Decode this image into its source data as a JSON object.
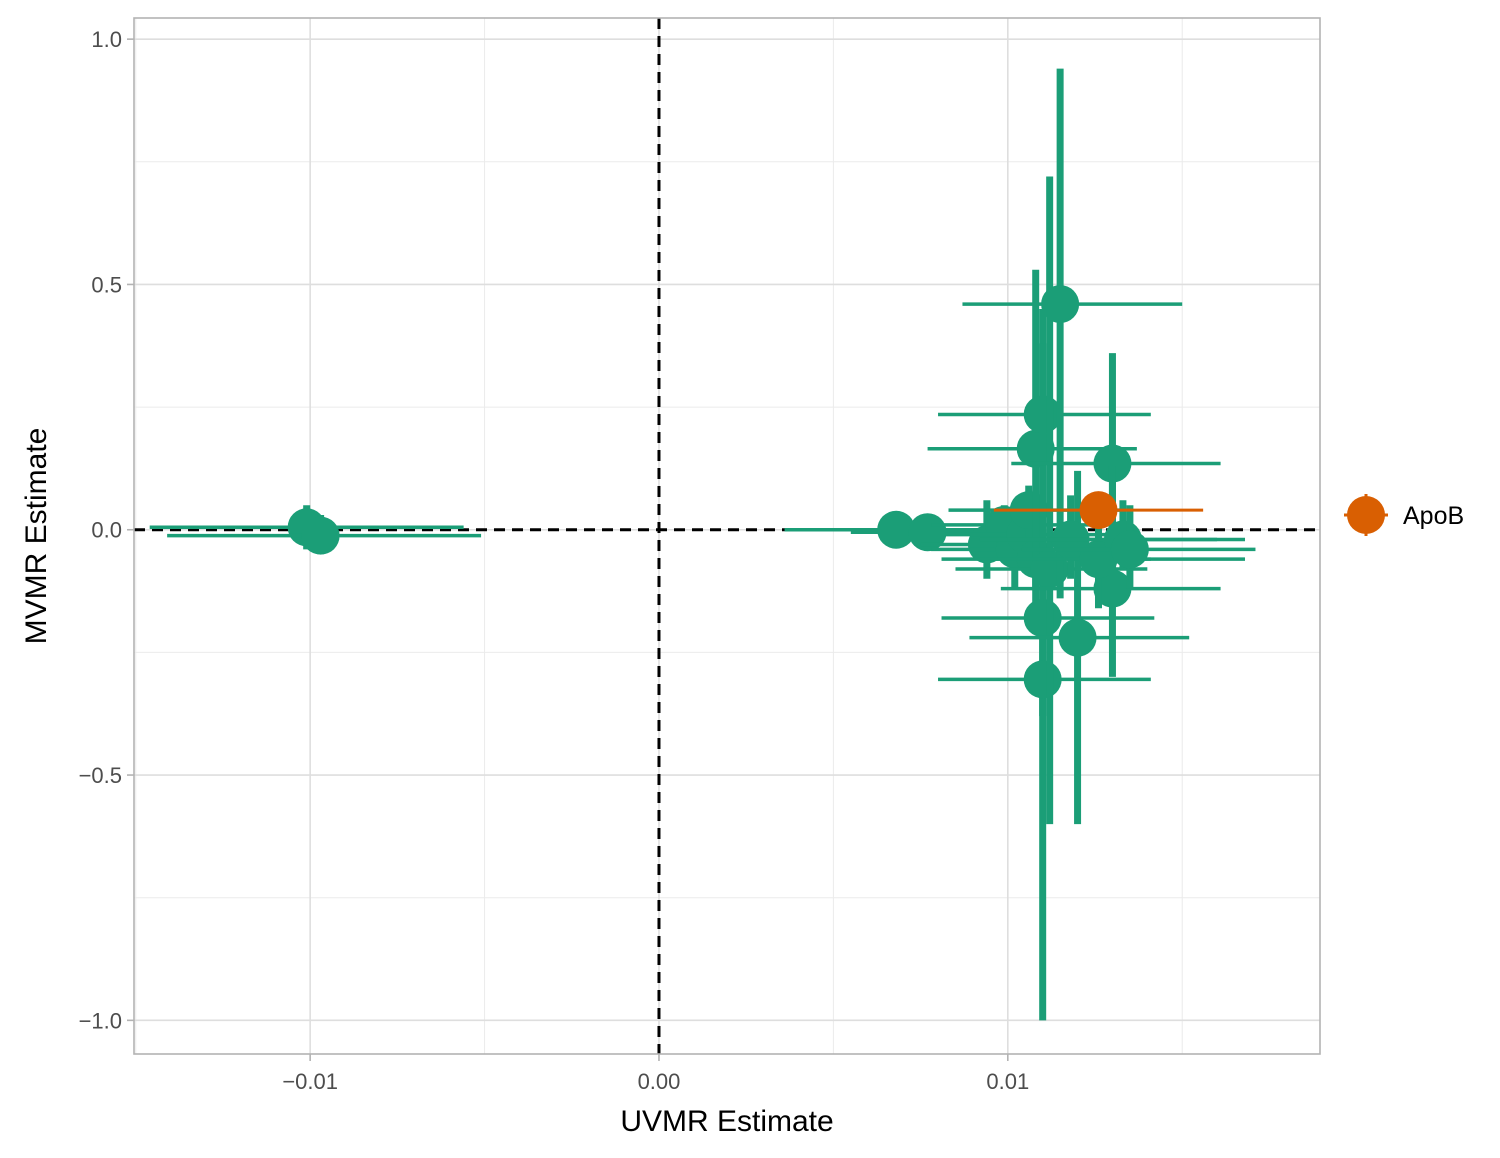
{
  "chart_data": {
    "type": "scatter",
    "xlabel": "UVMR Estimate",
    "ylabel": "MVMR Estimate",
    "xlim": [
      -0.01505,
      0.01895
    ],
    "ylim": [
      -1.0686,
      1.0431
    ],
    "x_ticks": [
      -0.01,
      0.0,
      0.01
    ],
    "x_tick_labels": [
      "−0.01",
      "0.00",
      "0.01"
    ],
    "y_ticks": [
      -1.0,
      -0.5,
      0.0,
      0.5,
      1.0
    ],
    "y_tick_labels": [
      "−1.0",
      "−0.5",
      "0.0",
      "0.5",
      "1.0"
    ],
    "x_minor_ticks": [
      -0.015,
      -0.005,
      0.005,
      0.015
    ],
    "y_minor_ticks": [
      -0.75,
      -0.25,
      0.25,
      0.75
    ],
    "grid": true,
    "reference_lines": {
      "x": 0.0,
      "y": 0.0,
      "style": "dashed"
    },
    "legend": {
      "position": "right",
      "entries": [
        {
          "label": "ApoB",
          "color": "#D95F02"
        }
      ]
    },
    "colors": {
      "other": "#1B9E77",
      "highlight": "#D95F02"
    },
    "series": [
      {
        "group": "other",
        "points": [
          {
            "x": -0.0101,
            "y": 0.005,
            "xmin": -0.0146,
            "xmax": -0.0056,
            "ymin": -0.04,
            "ymax": 0.05
          },
          {
            "x": -0.0097,
            "y": -0.012,
            "xmin": -0.0141,
            "xmax": -0.0051,
            "ymin": -0.05,
            "ymax": 0.03
          },
          {
            "x": 0.0068,
            "y": 0.0,
            "xmin": 0.0036,
            "xmax": 0.0098,
            "ymin": -0.02,
            "ymax": 0.02
          },
          {
            "x": 0.0077,
            "y": -0.005,
            "xmin": 0.0055,
            "xmax": 0.0105,
            "ymin": -0.03,
            "ymax": 0.02
          },
          {
            "x": 0.0094,
            "y": -0.03,
            "xmin": 0.0075,
            "xmax": 0.0123,
            "ymin": -0.1,
            "ymax": 0.06
          },
          {
            "x": 0.0099,
            "y": 0.01,
            "xmin": 0.0078,
            "xmax": 0.0135,
            "ymin": -0.04,
            "ymax": 0.05
          },
          {
            "x": 0.0102,
            "y": -0.04,
            "xmin": 0.0078,
            "xmax": 0.0136,
            "ymin": -0.12,
            "ymax": 0.05
          },
          {
            "x": 0.0105,
            "y": -0.01,
            "xmin": 0.0082,
            "xmax": 0.0138,
            "ymin": -0.07,
            "ymax": 0.06
          },
          {
            "x": 0.0108,
            "y": -0.06,
            "xmin": 0.0081,
            "xmax": 0.0141,
            "ymin": -0.15,
            "ymax": 0.08
          },
          {
            "x": 0.0106,
            "y": 0.04,
            "xmin": 0.0083,
            "xmax": 0.0132,
            "ymin": -0.02,
            "ymax": 0.09
          },
          {
            "x": 0.0108,
            "y": 0.165,
            "xmin": 0.0077,
            "xmax": 0.0137,
            "ymin": -0.12,
            "ymax": 0.53
          },
          {
            "x": 0.011,
            "y": 0.235,
            "xmin": 0.008,
            "xmax": 0.0141,
            "ymin": -0.1,
            "ymax": 0.45
          },
          {
            "x": 0.011,
            "y": -0.18,
            "xmin": 0.0081,
            "xmax": 0.0142,
            "ymin": -0.38,
            "ymax": 0.0
          },
          {
            "x": 0.011,
            "y": -0.305,
            "xmin": 0.008,
            "xmax": 0.0141,
            "ymin": -1.0,
            "ymax": 0.38
          },
          {
            "x": 0.0112,
            "y": -0.08,
            "xmin": 0.0085,
            "xmax": 0.014,
            "ymin": -0.6,
            "ymax": 0.72
          },
          {
            "x": 0.0115,
            "y": 0.46,
            "xmin": 0.0087,
            "xmax": 0.015,
            "ymin": -0.14,
            "ymax": 0.94
          },
          {
            "x": 0.012,
            "y": -0.22,
            "xmin": 0.0089,
            "xmax": 0.0152,
            "ymin": -0.6,
            "ymax": 0.12
          },
          {
            "x": 0.0118,
            "y": -0.02,
            "xmin": 0.0092,
            "xmax": 0.016,
            "ymin": -0.1,
            "ymax": 0.07
          },
          {
            "x": 0.013,
            "y": 0.135,
            "xmin": 0.0101,
            "xmax": 0.0161,
            "ymin": -0.15,
            "ymax": 0.36
          },
          {
            "x": 0.013,
            "y": -0.12,
            "xmin": 0.0098,
            "xmax": 0.0161,
            "ymin": -0.3,
            "ymax": 0.13
          },
          {
            "x": 0.0126,
            "y": -0.06,
            "xmin": 0.0092,
            "xmax": 0.0168,
            "ymin": -0.16,
            "ymax": 0.04
          },
          {
            "x": 0.0133,
            "y": -0.02,
            "xmin": 0.01,
            "xmax": 0.0168,
            "ymin": -0.08,
            "ymax": 0.06
          },
          {
            "x": 0.0135,
            "y": -0.04,
            "xmin": 0.0104,
            "xmax": 0.0171,
            "ymin": -0.12,
            "ymax": 0.05
          }
        ]
      },
      {
        "group": "highlight",
        "name": "ApoB",
        "points": [
          {
            "x": 0.0126,
            "y": 0.04,
            "xmin": 0.0096,
            "xmax": 0.0156,
            "ymin": 0.03,
            "ymax": 0.05
          }
        ]
      }
    ]
  }
}
